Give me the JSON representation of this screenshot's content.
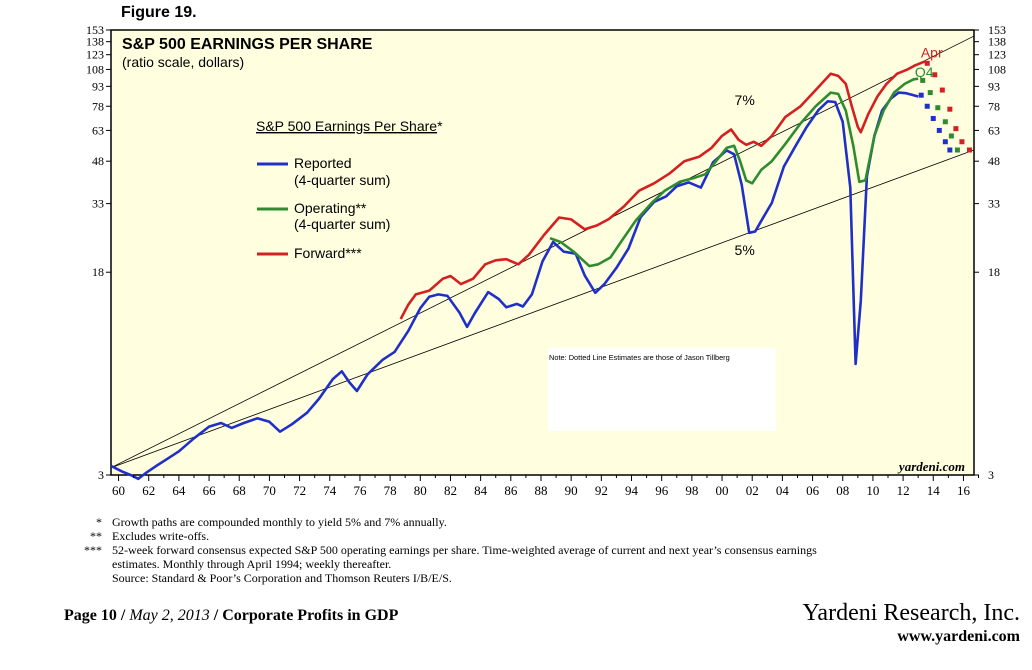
{
  "figure_label": "Figure 19.",
  "chart_data": {
    "type": "line",
    "title": "S&P 500 EARNINGS PER SHARE",
    "subtitle": "(ratio scale, dollars)",
    "legend_title": "S&P 500 Earnings Per Share",
    "legend_title_mark": "*",
    "legend_placement": "left",
    "y_scale": "log",
    "ylim": [
      3,
      153
    ],
    "xlim": [
      1959.5,
      2016.7
    ],
    "y_ticks": [
      3,
      18,
      33,
      48,
      63,
      78,
      93,
      108,
      123,
      138,
      153
    ],
    "x_ticks": [
      "60",
      "62",
      "64",
      "66",
      "68",
      "70",
      "72",
      "74",
      "76",
      "78",
      "80",
      "82",
      "84",
      "86",
      "88",
      "90",
      "92",
      "94",
      "96",
      "98",
      "00",
      "02",
      "04",
      "06",
      "08",
      "10",
      "12",
      "14",
      "16"
    ],
    "grid": false,
    "background": "#ffffe0",
    "watermark": "yardeni.com",
    "note": "Note: Dotted Line Estimates are those of Jason Tillberg",
    "annotations": [
      {
        "text": "7%",
        "x": 2001.5,
        "y": 79
      },
      {
        "text": "5%",
        "x": 2001.5,
        "y": 21
      },
      {
        "text": "Apr",
        "x": 2013.9,
        "y": 120,
        "color": "#d42020"
      },
      {
        "text": "Q4",
        "x": 2013.4,
        "y": 101,
        "color": "#2e8b2e"
      }
    ],
    "trendlines": [
      {
        "name": "7%",
        "from": [
          1959.5,
          3.2
        ],
        "to": [
          2016.7,
          145
        ]
      },
      {
        "name": "5%",
        "from": [
          1959.5,
          3.2
        ],
        "to": [
          2016.7,
          53
        ]
      }
    ],
    "series": [
      {
        "name": "Reported",
        "label_line2": "(4-quarter sum)",
        "label_suffix": "",
        "color": "#1f2fc8",
        "points": [
          [
            1959.5,
            3.25
          ],
          [
            1960.2,
            3.1
          ],
          [
            1960.8,
            3.0
          ],
          [
            1961.3,
            2.9
          ],
          [
            1961.8,
            3.05
          ],
          [
            1962.5,
            3.25
          ],
          [
            1963.2,
            3.45
          ],
          [
            1964,
            3.7
          ],
          [
            1965,
            4.15
          ],
          [
            1966,
            4.6
          ],
          [
            1966.8,
            4.75
          ],
          [
            1967.5,
            4.55
          ],
          [
            1968.3,
            4.75
          ],
          [
            1969.2,
            4.95
          ],
          [
            1970,
            4.8
          ],
          [
            1970.7,
            4.4
          ],
          [
            1971.5,
            4.7
          ],
          [
            1972.5,
            5.2
          ],
          [
            1973.3,
            5.9
          ],
          [
            1974.2,
            7.0
          ],
          [
            1974.8,
            7.5
          ],
          [
            1975.3,
            6.8
          ],
          [
            1975.8,
            6.3
          ],
          [
            1976.5,
            7.3
          ],
          [
            1977.5,
            8.3
          ],
          [
            1978.3,
            8.9
          ],
          [
            1979.2,
            10.7
          ],
          [
            1980,
            13.1
          ],
          [
            1980.6,
            14.5
          ],
          [
            1981.2,
            14.8
          ],
          [
            1981.8,
            14.6
          ],
          [
            1982.6,
            12.6
          ],
          [
            1983.1,
            11.1
          ],
          [
            1983.6,
            12.5
          ],
          [
            1984.5,
            15.1
          ],
          [
            1985.2,
            14.2
          ],
          [
            1985.7,
            13.2
          ],
          [
            1986.4,
            13.6
          ],
          [
            1986.8,
            13.3
          ],
          [
            1987.4,
            14.8
          ],
          [
            1988.1,
            19.8
          ],
          [
            1988.8,
            23.5
          ],
          [
            1989.5,
            21.6
          ],
          [
            1990.3,
            21.2
          ],
          [
            1990.9,
            17.5
          ],
          [
            1991.6,
            15.0
          ],
          [
            1992.2,
            16.2
          ],
          [
            1993,
            18.7
          ],
          [
            1993.8,
            22.2
          ],
          [
            1994.6,
            29.3
          ],
          [
            1995.5,
            33.5
          ],
          [
            1996.3,
            35.2
          ],
          [
            1997,
            38.5
          ],
          [
            1997.8,
            39.8
          ],
          [
            1998.6,
            38.0
          ],
          [
            1999.4,
            47.5
          ],
          [
            2000.3,
            52.8
          ],
          [
            2000.8,
            51.0
          ],
          [
            2001.3,
            39.0
          ],
          [
            2001.8,
            25.5
          ],
          [
            2002.2,
            25.8
          ],
          [
            2002.7,
            29.0
          ],
          [
            2003.3,
            33.2
          ],
          [
            2004.1,
            45.8
          ],
          [
            2004.9,
            55.3
          ],
          [
            2005.6,
            64.8
          ],
          [
            2006.4,
            75.5
          ],
          [
            2007.0,
            81.5
          ],
          [
            2007.5,
            81.0
          ],
          [
            2008.0,
            68.0
          ],
          [
            2008.5,
            38.0
          ],
          [
            2008.85,
            8.0
          ],
          [
            2009.2,
            14.0
          ],
          [
            2009.6,
            42.0
          ],
          [
            2010.1,
            60.0
          ],
          [
            2010.6,
            75.0
          ],
          [
            2011.2,
            83.5
          ],
          [
            2011.7,
            88.0
          ],
          [
            2012.2,
            87.5
          ],
          [
            2012.7,
            86.0
          ],
          [
            2013.0,
            85.0
          ]
        ]
      },
      {
        "name": "Operating",
        "label_line2": "(4-quarter sum)",
        "label_suffix": "**",
        "color": "#2e8b2e",
        "points": [
          [
            1988.6,
            24.3
          ],
          [
            1989.3,
            23.5
          ],
          [
            1990.2,
            21.5
          ],
          [
            1991.2,
            19.0
          ],
          [
            1991.8,
            19.3
          ],
          [
            1992.6,
            20.5
          ],
          [
            1993.4,
            24.0
          ],
          [
            1994.3,
            28.5
          ],
          [
            1995.3,
            33.0
          ],
          [
            1996.2,
            37.0
          ],
          [
            1997.2,
            40.0
          ],
          [
            1998.2,
            41.5
          ],
          [
            1998.9,
            42.8
          ],
          [
            1999.6,
            48.0
          ],
          [
            2000.3,
            54.0
          ],
          [
            2000.8,
            55.0
          ],
          [
            2001.2,
            48.0
          ],
          [
            2001.6,
            40.5
          ],
          [
            2002.0,
            39.5
          ],
          [
            2002.6,
            44.5
          ],
          [
            2003.3,
            48.0
          ],
          [
            2004.2,
            56.0
          ],
          [
            2005.2,
            67.0
          ],
          [
            2006.2,
            78.0
          ],
          [
            2007.2,
            88.0
          ],
          [
            2007.7,
            87.0
          ],
          [
            2008.2,
            75.0
          ],
          [
            2008.7,
            55.0
          ],
          [
            2009.1,
            40.0
          ],
          [
            2009.5,
            40.5
          ],
          [
            2010.1,
            60.0
          ],
          [
            2010.7,
            75.0
          ],
          [
            2011.4,
            88.0
          ],
          [
            2012.1,
            95.0
          ],
          [
            2012.7,
            99.0
          ],
          [
            2013.0,
            99.5
          ]
        ]
      },
      {
        "name": "Forward",
        "label_line2": "",
        "label_suffix": "***",
        "color": "#d42020",
        "points": [
          [
            1978.7,
            11.9
          ],
          [
            1979.2,
            13.5
          ],
          [
            1979.7,
            14.8
          ],
          [
            1980.6,
            15.3
          ],
          [
            1981.5,
            17.0
          ],
          [
            1982.0,
            17.4
          ],
          [
            1982.7,
            16.2
          ],
          [
            1983.5,
            17.0
          ],
          [
            1984.3,
            19.3
          ],
          [
            1985.0,
            20.0
          ],
          [
            1985.7,
            20.2
          ],
          [
            1986.5,
            19.3
          ],
          [
            1987.2,
            21.0
          ],
          [
            1988.2,
            25.0
          ],
          [
            1989.2,
            29.2
          ],
          [
            1990.0,
            28.7
          ],
          [
            1990.9,
            26.3
          ],
          [
            1991.7,
            27.2
          ],
          [
            1992.5,
            28.8
          ],
          [
            1993.5,
            32.2
          ],
          [
            1994.5,
            37.0
          ],
          [
            1995.5,
            39.5
          ],
          [
            1996.5,
            43.0
          ],
          [
            1997.5,
            48.0
          ],
          [
            1998.5,
            50.0
          ],
          [
            1999.3,
            54.0
          ],
          [
            2000.0,
            60.0
          ],
          [
            2000.6,
            63.5
          ],
          [
            2001.1,
            58.0
          ],
          [
            2001.6,
            55.5
          ],
          [
            2002.1,
            57.0
          ],
          [
            2002.6,
            55.0
          ],
          [
            2003.3,
            60.0
          ],
          [
            2004.2,
            71.0
          ],
          [
            2005.2,
            78.0
          ],
          [
            2006.2,
            90.0
          ],
          [
            2007.2,
            104.0
          ],
          [
            2007.7,
            102.0
          ],
          [
            2008.2,
            95.0
          ],
          [
            2008.6,
            78.0
          ],
          [
            2009.0,
            65.0
          ],
          [
            2009.2,
            62.0
          ],
          [
            2009.7,
            73.0
          ],
          [
            2010.3,
            85.0
          ],
          [
            2010.9,
            95.0
          ],
          [
            2011.6,
            104.0
          ],
          [
            2012.3,
            108.0
          ],
          [
            2012.8,
            112.0
          ],
          [
            2013.3,
            115.0
          ],
          [
            2013.5,
            116.0
          ]
        ]
      }
    ],
    "estimates": [
      {
        "name": "Reported estimate",
        "color": "#1f2fc8",
        "points": [
          [
            2013.2,
            86.0
          ],
          [
            2013.6,
            78.0
          ],
          [
            2014.0,
            70.0
          ],
          [
            2014.4,
            63.0
          ],
          [
            2014.8,
            57.0
          ],
          [
            2015.1,
            53.0
          ]
        ]
      },
      {
        "name": "Operating estimate",
        "color": "#2e8b2e",
        "points": [
          [
            2013.3,
            98.0
          ],
          [
            2013.8,
            88.0
          ],
          [
            2014.3,
            77.0
          ],
          [
            2014.8,
            68.0
          ],
          [
            2015.2,
            60.0
          ],
          [
            2015.6,
            53.0
          ]
        ]
      },
      {
        "name": "Forward estimate",
        "color": "#d42020",
        "points": [
          [
            2013.6,
            114.0
          ],
          [
            2014.1,
            103.0
          ],
          [
            2014.6,
            90.0
          ],
          [
            2015.1,
            76.0
          ],
          [
            2015.5,
            64.0
          ],
          [
            2015.9,
            57.0
          ],
          [
            2016.4,
            53.0
          ]
        ]
      }
    ]
  },
  "footnotes": [
    {
      "mark": "*",
      "lines": [
        "Growth paths are compounded monthly to yield 5% and 7% annually."
      ]
    },
    {
      "mark": "**",
      "lines": [
        "Excludes write-offs."
      ]
    },
    {
      "mark": "***",
      "lines": [
        "52-week forward consensus expected S&P 500 operating earnings per share. Time-weighted average of current and next year’s consensus earnings",
        "estimates. Monthly through April 1994; weekly thereafter.",
        "Source: Standard & Poor’s Corporation and Thomson Reuters I/B/E/S."
      ]
    }
  ],
  "page": {
    "page_label": "Page 10",
    "separator": "/",
    "date": "May 2, 2013",
    "separator2": "/",
    "report_title": "Corporate Profits in GDP"
  },
  "brand": {
    "name": "Yardeni Research, Inc.",
    "url": "www.yardeni.com"
  }
}
